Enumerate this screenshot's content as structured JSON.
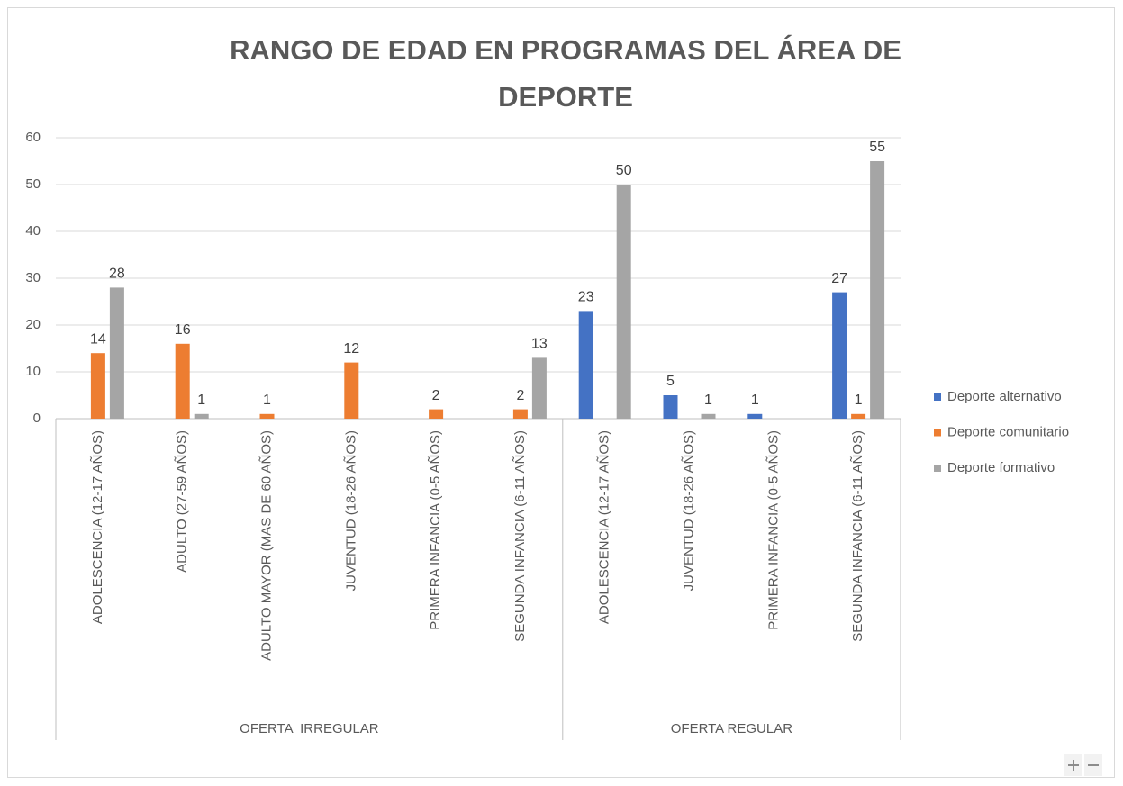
{
  "chart_data": {
    "type": "bar",
    "title": "RANGO DE EDAD EN PROGRAMAS DEL ÁREA DE DEPORTE",
    "categories": [
      "ADOLESCENCIA (12-17 AÑOS)",
      "ADULTO (27-59 AÑOS)",
      "ADULTO MAYOR (MAS DE 60 AÑOS)",
      "JUVENTUD (18-26 AÑOS)",
      "PRIMERA INFANCIA (0-5 AÑOS)",
      "SEGUNDA INFANCIA (6-11 AÑOS)",
      "ADOLESCENCIA (12-17 AÑOS)",
      "JUVENTUD (18-26 AÑOS)",
      "PRIMERA INFANCIA (0-5 AÑOS)",
      "SEGUNDA INFANCIA (6-11 AÑOS)"
    ],
    "groups": [
      {
        "name": "OFERTA  IRREGULAR",
        "start": 0,
        "end": 5
      },
      {
        "name": "OFERTA REGULAR",
        "start": 6,
        "end": 9
      }
    ],
    "series": [
      {
        "name": "Deporte alternativo",
        "color": "#4472c4",
        "values": [
          null,
          null,
          null,
          null,
          null,
          null,
          23,
          5,
          1,
          27
        ]
      },
      {
        "name": "Deporte comunitario",
        "color": "#ed7d31",
        "values": [
          14,
          16,
          1,
          12,
          2,
          2,
          null,
          null,
          null,
          1
        ]
      },
      {
        "name": "Deporte formativo",
        "color": "#a5a5a5",
        "values": [
          28,
          1,
          null,
          null,
          null,
          13,
          50,
          1,
          null,
          55
        ]
      }
    ],
    "ylim": [
      0,
      60
    ],
    "yticks": [
      0,
      10,
      20,
      30,
      40,
      50,
      60
    ],
    "grid": true,
    "legend": "right"
  }
}
